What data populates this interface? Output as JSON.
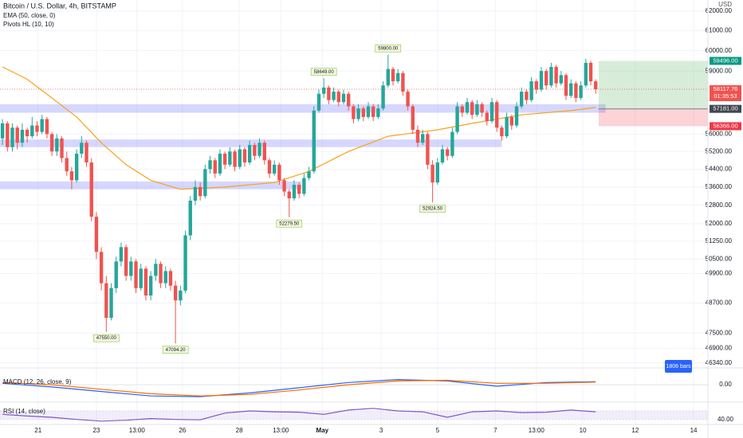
{
  "chart_data": {
    "type": "candlestick",
    "title": "Bitcoin / U.S. Dollar, 4h, BITSTAMP",
    "indicators": [
      "EMA (50, close, 0)",
      "Pivots HL (10, 10)"
    ],
    "currency": "USD",
    "log_scale": true,
    "grid": true,
    "up_color": "#26a69a",
    "down_color": "#ef5350",
    "xlim": [
      -0.5,
      142.7
    ],
    "ylim": [
      46150,
      62570
    ],
    "yticks": [
      {
        "value": 62000,
        "label": "62000.00"
      },
      {
        "value": 61000,
        "label": "61000.00"
      },
      {
        "value": 60000,
        "label": "60000.00"
      },
      {
        "value": 59000,
        "label": "59000.00"
      },
      {
        "value": 56000,
        "label": "56000.00"
      },
      {
        "value": 55200,
        "label": "55200.00"
      },
      {
        "value": 54400,
        "label": "54400.00"
      },
      {
        "value": 53600,
        "label": "53600.00"
      },
      {
        "value": 52800,
        "label": "52800.00"
      },
      {
        "value": 52000,
        "label": "52000.00"
      },
      {
        "value": 51250,
        "label": "51250.00"
      },
      {
        "value": 50500,
        "label": "50500.00"
      },
      {
        "value": 49900,
        "label": "49900.00"
      },
      {
        "value": 48700,
        "label": "48700.00"
      },
      {
        "value": 47500,
        "label": "47500.00"
      },
      {
        "value": 46900,
        "label": "46900.00"
      },
      {
        "value": 46340,
        "label": "46340.00"
      }
    ],
    "xticks": [
      {
        "value": 7.2,
        "label": "21"
      },
      {
        "value": 19,
        "label": "23"
      },
      {
        "value": 27.2,
        "label": "13:00"
      },
      {
        "value": 36.4,
        "label": "26"
      },
      {
        "value": 47.9,
        "label": "28"
      },
      {
        "value": 56.3,
        "label": "13:00"
      },
      {
        "value": 64.7,
        "label": "May"
      },
      {
        "value": 76.6,
        "label": "3"
      },
      {
        "value": 88,
        "label": "5"
      },
      {
        "value": 99.7,
        "label": "7"
      },
      {
        "value": 108,
        "label": "13:00"
      },
      {
        "value": 117.4,
        "label": "10"
      },
      {
        "value": 128,
        "label": "12"
      },
      {
        "value": 139.8,
        "label": "14"
      }
    ],
    "candles": [
      [
        55800,
        56700,
        55500,
        56500
      ],
      [
        56500,
        56600,
        55200,
        55400
      ],
      [
        55400,
        56500,
        55200,
        56300
      ],
      [
        56300,
        56400,
        55300,
        55600
      ],
      [
        55600,
        56500,
        55400,
        56200
      ],
      [
        56200,
        56300,
        55600,
        55900
      ],
      [
        55900,
        56800,
        55800,
        56400
      ],
      [
        56400,
        56600,
        55900,
        56100
      ],
      [
        56100,
        56900,
        56000,
        56700
      ],
      [
        56700,
        56800,
        55800,
        56000
      ],
      [
        56000,
        56100,
        55000,
        55200
      ],
      [
        55200,
        56000,
        55000,
        55800
      ],
      [
        55800,
        55900,
        54700,
        54900
      ],
      [
        54900,
        55200,
        54100,
        54300
      ],
      [
        54300,
        54500,
        53500,
        53900
      ],
      [
        53900,
        55300,
        53800,
        55100
      ],
      [
        55100,
        55900,
        54900,
        55600
      ],
      [
        55600,
        55700,
        54500,
        54700
      ],
      [
        54700,
        54900,
        52100,
        52300
      ],
      [
        52300,
        52500,
        50500,
        50800
      ],
      [
        50800,
        51000,
        49200,
        49500
      ],
      [
        49500,
        49800,
        47550,
        48100
      ],
      [
        48100,
        49500,
        48000,
        49300
      ],
      [
        49300,
        50600,
        49100,
        50400
      ],
      [
        50400,
        51200,
        50200,
        51000
      ],
      [
        51000,
        51100,
        49600,
        49800
      ],
      [
        49800,
        50600,
        49600,
        50400
      ],
      [
        50400,
        50500,
        49100,
        49300
      ],
      [
        49300,
        50300,
        49200,
        50100
      ],
      [
        50100,
        50200,
        48800,
        49000
      ],
      [
        49000,
        50000,
        48800,
        49800
      ],
      [
        49800,
        50500,
        49600,
        50300
      ],
      [
        50300,
        50400,
        49300,
        49500
      ],
      [
        49500,
        50200,
        49300,
        50000
      ],
      [
        50000,
        50100,
        49200,
        49400
      ],
      [
        49400,
        49600,
        47094.2,
        48800
      ],
      [
        48800,
        49400,
        48600,
        49200
      ],
      [
        49200,
        51700,
        49100,
        51500
      ],
      [
        51500,
        53200,
        51300,
        53000
      ],
      [
        53000,
        53900,
        52800,
        53600
      ],
      [
        53600,
        53800,
        53000,
        53200
      ],
      [
        53200,
        54600,
        53100,
        54400
      ],
      [
        54400,
        55000,
        54200,
        54800
      ],
      [
        54800,
        54900,
        54000,
        54200
      ],
      [
        54200,
        55300,
        54100,
        55100
      ],
      [
        55100,
        55200,
        54400,
        54600
      ],
      [
        54600,
        55400,
        54500,
        55200
      ],
      [
        55200,
        55300,
        54300,
        54500
      ],
      [
        54500,
        55500,
        54400,
        55300
      ],
      [
        55300,
        55400,
        54500,
        54700
      ],
      [
        54700,
        55700,
        54600,
        55500
      ],
      [
        55500,
        55600,
        54800,
        55000
      ],
      [
        55000,
        55800,
        54900,
        55600
      ],
      [
        55600,
        55700,
        54600,
        54800
      ],
      [
        54800,
        54900,
        54000,
        54200
      ],
      [
        54200,
        54800,
        54100,
        54600
      ],
      [
        54600,
        54700,
        53700,
        53900
      ],
      [
        53900,
        54000,
        53200,
        53400
      ],
      [
        53400,
        53500,
        52279.5,
        53100
      ],
      [
        53100,
        53900,
        53000,
        53700
      ],
      [
        53700,
        53800,
        53100,
        53300
      ],
      [
        53300,
        54200,
        53200,
        54000
      ],
      [
        54000,
        54500,
        53900,
        54300
      ],
      [
        54300,
        57300,
        54200,
        57100
      ],
      [
        57100,
        58100,
        57000,
        57900
      ],
      [
        57900,
        58649,
        57700,
        58200
      ],
      [
        58200,
        58300,
        57400,
        57600
      ],
      [
        57600,
        58200,
        57500,
        58000
      ],
      [
        58000,
        58100,
        57300,
        57500
      ],
      [
        57500,
        58100,
        57400,
        57900
      ],
      [
        57900,
        58000,
        57100,
        57300
      ],
      [
        57300,
        57400,
        56500,
        56700
      ],
      [
        56700,
        57400,
        56600,
        57200
      ],
      [
        57200,
        57300,
        56600,
        56800
      ],
      [
        56800,
        57500,
        56700,
        57300
      ],
      [
        57300,
        57400,
        56600,
        56800
      ],
      [
        56800,
        57400,
        56700,
        57200
      ],
      [
        57200,
        58500,
        57100,
        58300
      ],
      [
        58300,
        59800,
        58200,
        59100
      ],
      [
        59100,
        59200,
        58300,
        58500
      ],
      [
        58500,
        59100,
        58400,
        58900
      ],
      [
        58900,
        59000,
        57800,
        58000
      ],
      [
        58000,
        58100,
        57100,
        57300
      ],
      [
        57300,
        57400,
        56000,
        56200
      ],
      [
        56200,
        56400,
        55400,
        55600
      ],
      [
        55600,
        56200,
        55500,
        56000
      ],
      [
        56000,
        56100,
        54400,
        54600
      ],
      [
        54600,
        54800,
        52924.5,
        53800
      ],
      [
        53800,
        54900,
        53700,
        54700
      ],
      [
        54700,
        55500,
        54600,
        55300
      ],
      [
        55300,
        55400,
        54800,
        55000
      ],
      [
        55000,
        56300,
        54900,
        56100
      ],
      [
        56100,
        57500,
        56000,
        57300
      ],
      [
        57300,
        57400,
        56800,
        57000
      ],
      [
        57000,
        57700,
        56900,
        57500
      ],
      [
        57500,
        57600,
        56700,
        56900
      ],
      [
        56900,
        57600,
        56800,
        57400
      ],
      [
        57400,
        57500,
        56800,
        57000
      ],
      [
        57000,
        57100,
        56400,
        56600
      ],
      [
        56600,
        57700,
        56500,
        57500
      ],
      [
        57500,
        57600,
        56100,
        56300
      ],
      [
        56300,
        56400,
        55700,
        55900
      ],
      [
        55900,
        57000,
        55800,
        56800
      ],
      [
        56800,
        56900,
        56200,
        56400
      ],
      [
        56400,
        57500,
        56300,
        57300
      ],
      [
        57300,
        58200,
        57200,
        58000
      ],
      [
        58000,
        58100,
        57400,
        57600
      ],
      [
        57600,
        58700,
        57500,
        58500
      ],
      [
        58500,
        58600,
        57900,
        58100
      ],
      [
        58100,
        59200,
        58000,
        59000
      ],
      [
        59000,
        59100,
        58100,
        58300
      ],
      [
        58300,
        59400,
        58200,
        59200
      ],
      [
        59200,
        59300,
        58200,
        58400
      ],
      [
        58400,
        59000,
        58300,
        58800
      ],
      [
        58800,
        58900,
        57600,
        57800
      ],
      [
        57800,
        58600,
        57700,
        58400
      ],
      [
        58400,
        58500,
        57500,
        57700
      ],
      [
        57700,
        58500,
        57600,
        58300
      ],
      [
        58300,
        59600,
        58200,
        59400
      ],
      [
        59400,
        59500,
        58300,
        58500
      ],
      [
        58500,
        58600,
        57900,
        58117.76
      ]
    ],
    "ema": {
      "color": "#f7a21b",
      "x": [
        0,
        5,
        10,
        15,
        20,
        25,
        30,
        36,
        45,
        55,
        62,
        70,
        78,
        88,
        95,
        105,
        115,
        120
      ],
      "values": [
        59200,
        58600,
        57700,
        56800,
        55600,
        54600,
        53900,
        53500,
        53600,
        53800,
        54300,
        55200,
        55900,
        56200,
        56500,
        56900,
        57100,
        57250
      ]
    },
    "pivot_highs": [
      {
        "x": 65,
        "value": 58649,
        "label": "58649.00"
      },
      {
        "x": 78,
        "value": 59800,
        "label": "59800.00"
      }
    ],
    "pivot_lows": [
      {
        "x": 21,
        "value": 47550,
        "label": "47550.00"
      },
      {
        "x": 35,
        "value": 47094.2,
        "label": "47094.20"
      },
      {
        "x": 58,
        "value": 52279.5,
        "label": "52279.50"
      },
      {
        "x": 87,
        "value": 52924.5,
        "label": "52924.50"
      }
    ],
    "zones": [
      {
        "from": 57000,
        "to": 57400,
        "x_end": 122
      },
      {
        "from": 55400,
        "to": 55750,
        "x_end": 101
      },
      {
        "from": 53500,
        "to": 53850,
        "x_end": 60.5
      }
    ],
    "position": {
      "entry": 57181,
      "target": 59496,
      "stop": 56366,
      "x_start": 120.6,
      "x_end": 142.7
    },
    "price_labels": [
      {
        "value": 59496,
        "label": "59496.00",
        "color": "#089981"
      },
      {
        "value": 58117.76,
        "label": "58117.76",
        "color": "#ef5350"
      },
      {
        "value": 57181,
        "label": "57181.00",
        "color": "#434651"
      },
      {
        "value": 56366,
        "label": "56366.00",
        "color": "#f23645"
      }
    ],
    "countdown": "01:35:53",
    "bars_button": "1806 bars",
    "macd": {
      "title": "MACD (12, 26, close, 9)",
      "ylim": [
        -1800,
        1400
      ],
      "yticks": [
        {
          "value": 0,
          "label": "0.00"
        }
      ],
      "x": [
        0,
        10,
        20,
        30,
        40,
        50,
        60,
        70,
        80,
        90,
        100,
        110,
        120
      ],
      "series": [
        {
          "color": "#2962ff",
          "values": [
            200,
            -300,
            -900,
            -1500,
            -1600,
            -1100,
            -400,
            300,
            700,
            500,
            -200,
            300,
            400
          ]
        },
        {
          "color": "#ff6d00",
          "values": [
            300,
            0,
            -600,
            -1200,
            -1500,
            -1300,
            -700,
            0,
            500,
            600,
            200,
            200,
            350
          ]
        }
      ]
    },
    "rsi": {
      "title": "RSI (14, close)",
      "ylim": [
        30,
        75
      ],
      "yticks": [
        {
          "value": 40,
          "label": "40.00"
        }
      ],
      "band": [
        40,
        60
      ],
      "color": "#7e57c2",
      "x": [
        0,
        5,
        10,
        15,
        20,
        25,
        30,
        35,
        40,
        45,
        50,
        55,
        60,
        65,
        70,
        75,
        80,
        85,
        90,
        95,
        100,
        105,
        110,
        115,
        120
      ],
      "values": [
        52,
        48,
        45,
        40,
        36,
        38,
        42,
        40,
        39,
        55,
        60,
        58,
        57,
        52,
        62,
        66,
        60,
        58,
        45,
        58,
        60,
        56,
        57,
        62,
        58
      ]
    }
  }
}
